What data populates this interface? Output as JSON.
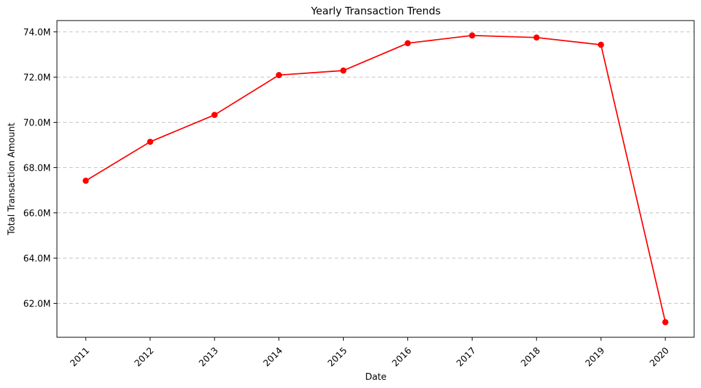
{
  "chart_data": {
    "type": "line",
    "title": "Yearly Transaction Trends",
    "xlabel": "Date",
    "ylabel": "Total Transaction Amount",
    "categories": [
      "2011",
      "2012",
      "2013",
      "2014",
      "2015",
      "2016",
      "2017",
      "2018",
      "2019",
      "2020"
    ],
    "series": [
      {
        "values": [
          67.42,
          69.14,
          70.33,
          72.09,
          72.29,
          73.5,
          73.84,
          73.75,
          73.43,
          61.17
        ],
        "color": "#ff0000"
      }
    ],
    "ylim": [
      60.5,
      74.5
    ],
    "y_ticks": [
      62.0,
      64.0,
      66.0,
      68.0,
      70.0,
      72.0,
      74.0
    ],
    "y_tick_labels": [
      "62.0M",
      "64.0M",
      "66.0M",
      "68.0M",
      "70.0M",
      "72.0M",
      "74.0M"
    ],
    "grid": "horizontal dashed",
    "x_tick_rotation": "45 degrees",
    "marker": "circle"
  }
}
